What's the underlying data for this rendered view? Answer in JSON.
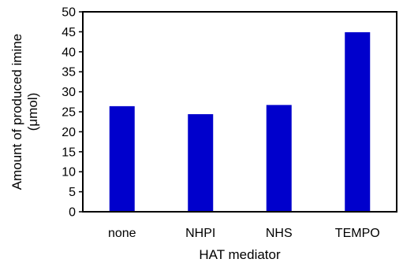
{
  "chart_data": {
    "type": "bar",
    "categories": [
      "none",
      "NHPI",
      "NHS",
      "TEMPO"
    ],
    "values": [
      26.4,
      24.4,
      26.7,
      44.9
    ],
    "xlabel": "HAT mediator",
    "ylabel_line1": "Amount of produced imine",
    "ylabel_line2": "(μmol)",
    "ylim": [
      0,
      50
    ],
    "yticks": [
      0,
      5,
      10,
      15,
      20,
      25,
      30,
      35,
      40,
      45,
      50
    ],
    "grid": false,
    "legend": "none",
    "bar_color": "#0000CC"
  }
}
